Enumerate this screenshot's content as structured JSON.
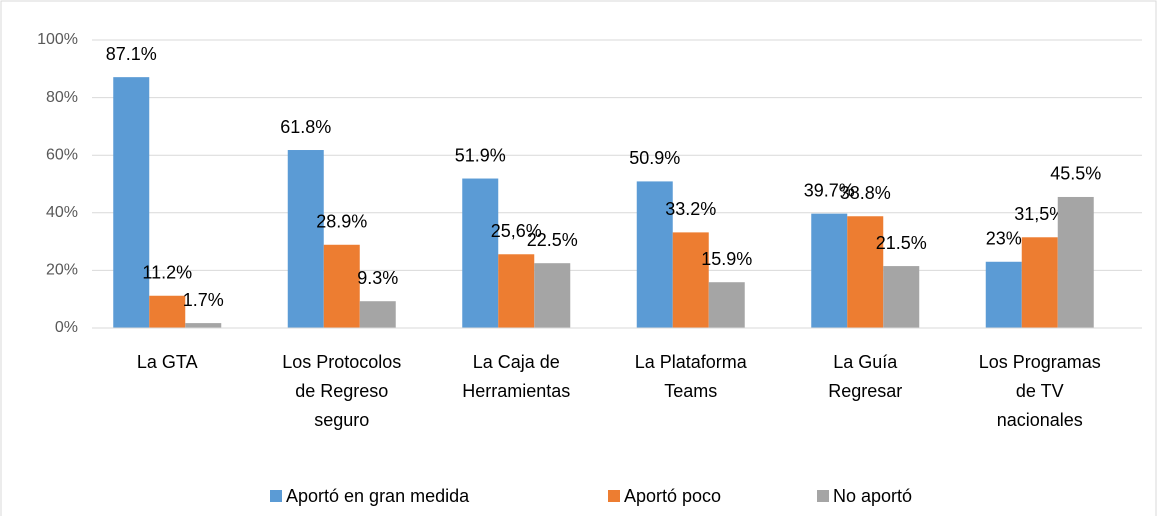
{
  "chart_data": {
    "type": "bar",
    "categories": [
      "La GTA",
      "Los Protocolos de Regreso seguro",
      "La Caja de Herramientas",
      "La Plataforma Teams",
      "La Guía Regresar",
      "Los Programas de TV nacionales"
    ],
    "series": [
      {
        "name": "Aportó en gran medida",
        "color": "#5b9bd5",
        "values": [
          87.1,
          61.8,
          51.9,
          50.9,
          39.7,
          23
        ],
        "value_labels": [
          "87.1%",
          "61.8%",
          "51.9%",
          "50.9%",
          "39.7%",
          "23%"
        ]
      },
      {
        "name": "Aportó poco",
        "color": "#ed7d31",
        "values": [
          11.2,
          28.9,
          25.6,
          33.2,
          38.8,
          31.5
        ],
        "value_labels": [
          "11.2%",
          "28.9%",
          "25,6%",
          "33.2%",
          "38.8%",
          "31,5%"
        ]
      },
      {
        "name": "No aportó",
        "color": "#a5a5a5",
        "values": [
          1.7,
          9.3,
          22.5,
          15.9,
          21.5,
          45.5
        ],
        "value_labels": [
          "1.7%",
          "9.3%",
          "22.5%",
          "15.9%",
          "21.5%",
          "45.5%"
        ]
      }
    ],
    "ylim": [
      0,
      100
    ],
    "yticks": [
      {
        "value": 0,
        "label": "0%"
      },
      {
        "value": 20,
        "label": "20%"
      },
      {
        "value": 40,
        "label": "40%"
      },
      {
        "value": 60,
        "label": "60%"
      },
      {
        "value": 80,
        "label": "80%"
      },
      {
        "value": 100,
        "label": "100%"
      }
    ],
    "grid": true,
    "legend": "bottom"
  }
}
